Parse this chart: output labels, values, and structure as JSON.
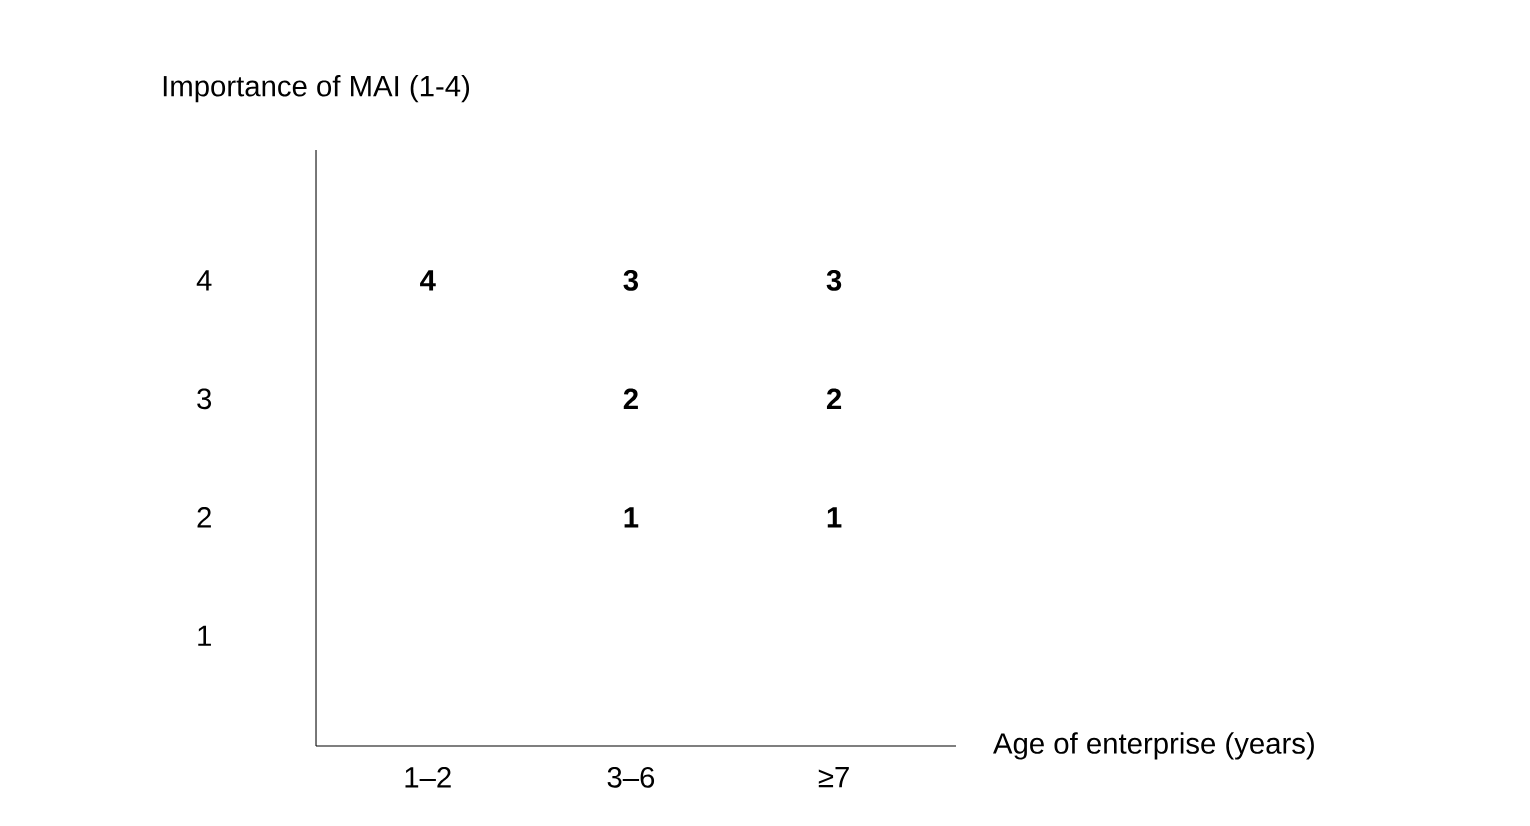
{
  "chart_data": {
    "type": "heatmap",
    "xlabel": "Age of enterprise (years)",
    "ylabel": "Importance of MAI (1-4)",
    "categories": [
      "1–2",
      "3–6",
      "≥7"
    ],
    "y_categories": [
      "4",
      "3",
      "2",
      "1"
    ],
    "cells": [
      [
        4,
        3,
        3
      ],
      [
        null,
        2,
        2
      ],
      [
        null,
        1,
        1
      ],
      [
        null,
        null,
        null
      ]
    ],
    "cell_labels": [
      [
        "4",
        "3",
        "3"
      ],
      [
        null,
        "2",
        "2"
      ],
      [
        null,
        "1",
        "1"
      ],
      [
        null,
        null,
        null
      ]
    ]
  }
}
